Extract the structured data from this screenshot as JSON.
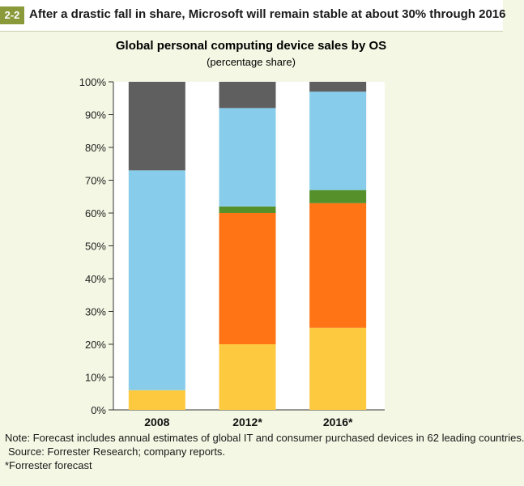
{
  "figure": {
    "number": "2-2",
    "headline": "After a drastic fall in share, Microsoft will remain stable at about 30% through 2016"
  },
  "notes": {
    "note": "Note: Forecast includes annual estimates of global IT and consumer purchased devices in 62 leading countries.",
    "source": "Source: Forrester Research; company reports.",
    "footnote": "*Forrester forecast"
  },
  "chart_data": {
    "type": "bar",
    "stacked": true,
    "title": "Global personal computing device sales by OS",
    "subtitle": "(percentage share)",
    "xlabel": "",
    "ylabel": "",
    "ylim": [
      0,
      100
    ],
    "yticks": [
      "0%",
      "10%",
      "20%",
      "30%",
      "40%",
      "50%",
      "60%",
      "70%",
      "80%",
      "90%",
      "100%"
    ],
    "grid": false,
    "legend": "none",
    "categories": [
      "2008",
      "2012*",
      "2016*"
    ],
    "series": [
      {
        "color": "#fdc93f",
        "values": [
          6,
          20,
          25
        ]
      },
      {
        "color": "#ff7414",
        "values": [
          0,
          40,
          38
        ]
      },
      {
        "color": "#55902a",
        "values": [
          0,
          2,
          4
        ]
      },
      {
        "color": "#87cdeb",
        "values": [
          67,
          30,
          30
        ]
      },
      {
        "color": "#5f5f5f",
        "values": [
          27,
          8,
          3
        ]
      }
    ]
  }
}
